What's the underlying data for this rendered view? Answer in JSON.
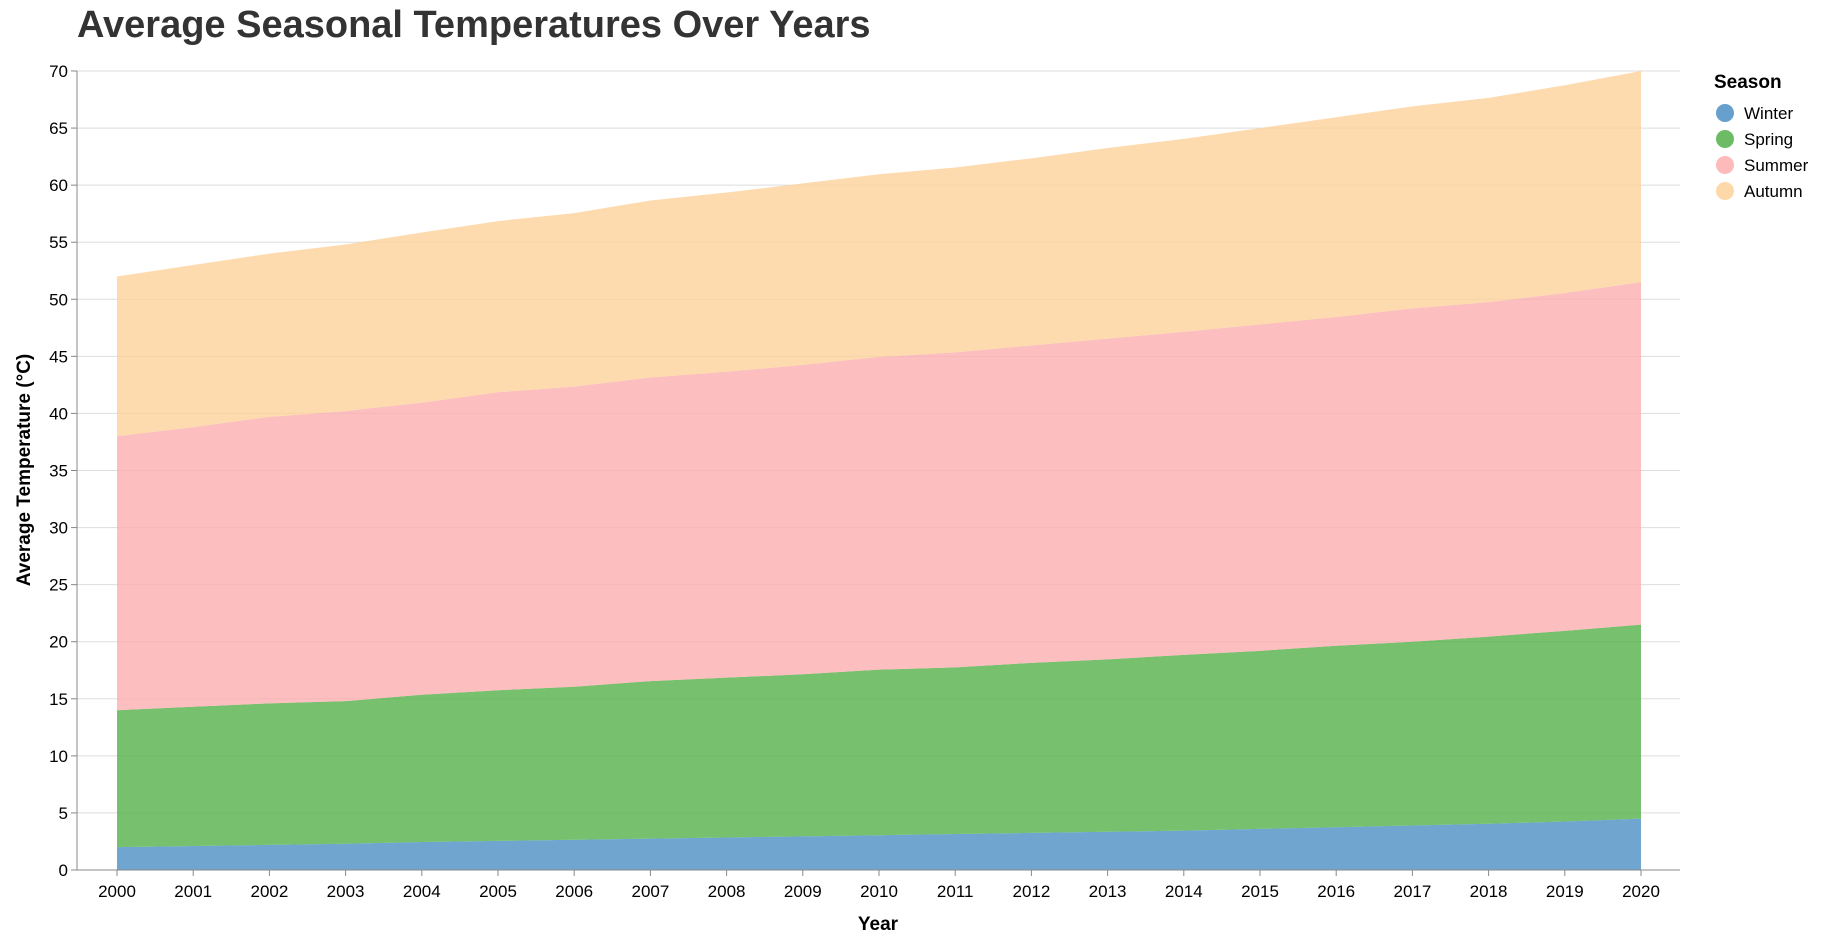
{
  "chart_data": {
    "type": "area",
    "stacked": true,
    "title": "Average Seasonal Temperatures Over Years",
    "xlabel": "Year",
    "ylabel": "Average Temperature (°C)",
    "ylim": [
      0,
      70
    ],
    "yticks": [
      0,
      5,
      10,
      15,
      20,
      25,
      30,
      35,
      40,
      45,
      50,
      55,
      60,
      65,
      70
    ],
    "grid": true,
    "legend_title": "Season",
    "legend_position": "top-right",
    "categories": [
      "2000",
      "2001",
      "2002",
      "2003",
      "2004",
      "2005",
      "2006",
      "2007",
      "2008",
      "2009",
      "2010",
      "2011",
      "2012",
      "2013",
      "2014",
      "2015",
      "2016",
      "2017",
      "2018",
      "2019",
      "2020"
    ],
    "series": [
      {
        "name": "Winter",
        "color": "#4c8fc4",
        "values": [
          2.0,
          2.1,
          2.2,
          2.3,
          2.45,
          2.55,
          2.65,
          2.75,
          2.85,
          2.95,
          3.05,
          3.15,
          3.25,
          3.35,
          3.45,
          3.6,
          3.75,
          3.9,
          4.05,
          4.25,
          4.5
        ]
      },
      {
        "name": "Spring",
        "color": "#54b04a",
        "values": [
          12.0,
          12.2,
          12.4,
          12.5,
          12.9,
          13.2,
          13.4,
          13.8,
          14.0,
          14.2,
          14.5,
          14.6,
          14.9,
          15.1,
          15.4,
          15.6,
          15.9,
          16.1,
          16.4,
          16.7,
          17.0
        ]
      },
      {
        "name": "Summer",
        "color": "#fbaeae",
        "values": [
          24.0,
          24.5,
          25.1,
          25.4,
          25.6,
          26.1,
          26.3,
          26.6,
          26.8,
          27.1,
          27.4,
          27.6,
          27.8,
          28.1,
          28.3,
          28.6,
          28.8,
          29.2,
          29.3,
          29.6,
          30.0
        ]
      },
      {
        "name": "Autumn",
        "color": "#fdd29a",
        "values": [
          14.0,
          14.2,
          14.3,
          14.6,
          14.9,
          15.0,
          15.2,
          15.5,
          15.7,
          15.9,
          16.0,
          16.2,
          16.4,
          16.7,
          16.9,
          17.2,
          17.5,
          17.7,
          17.9,
          18.2,
          18.5
        ]
      }
    ]
  }
}
